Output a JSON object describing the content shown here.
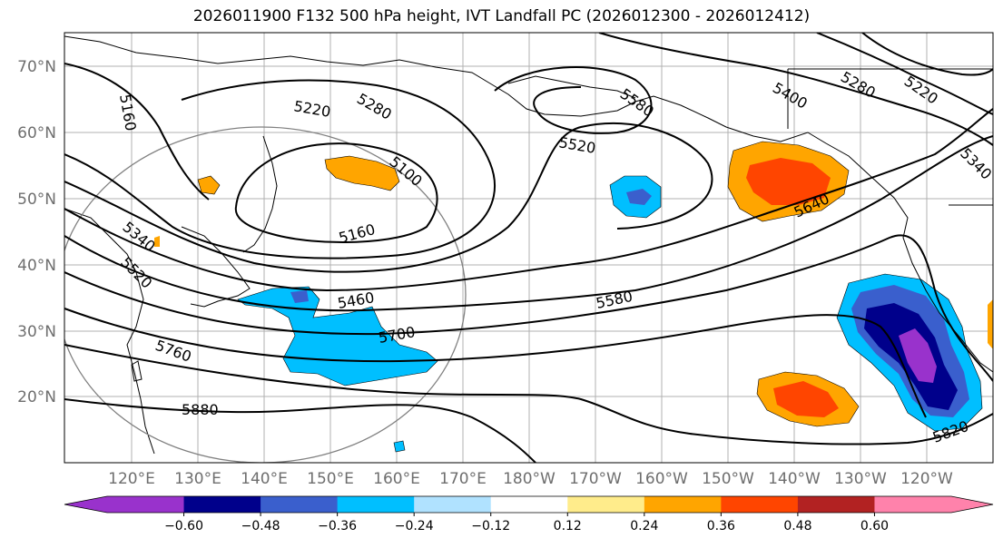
{
  "title": "2026011900 F132 500 hPa height, IVT Landfall PC (2026012300 - 2026012412)",
  "lat_labels": [
    "70°N",
    "60°N",
    "50°N",
    "40°N",
    "30°N",
    "20°N"
  ],
  "lon_labels": [
    "120°E",
    "130°E",
    "140°E",
    "150°E",
    "160°E",
    "170°E",
    "180°W",
    "170°W",
    "160°W",
    "150°W",
    "140°W",
    "130°W",
    "120°W"
  ],
  "colorbar": {
    "ticks": [
      "−0.60",
      "−0.48",
      "−0.36",
      "−0.24",
      "−0.12",
      "0.12",
      "0.24",
      "0.36",
      "0.48",
      "0.60"
    ],
    "colors": [
      "#9932cc",
      "#00008b",
      "#3a5fcd",
      "#00bfff",
      "#b0e2ff",
      "#ffffff",
      "#ffec8b",
      "#ffa500",
      "#ff4500",
      "#b22222",
      "#ff82ab"
    ]
  },
  "contour_labels": [
    "5160",
    "5220",
    "5280",
    "5580",
    "5400",
    "5280",
    "5220",
    "5520",
    "5100",
    "5640",
    "5340",
    "5160",
    "5340",
    "5520",
    "5460",
    "5580",
    "5700",
    "5760",
    "5880",
    "5820"
  ]
}
